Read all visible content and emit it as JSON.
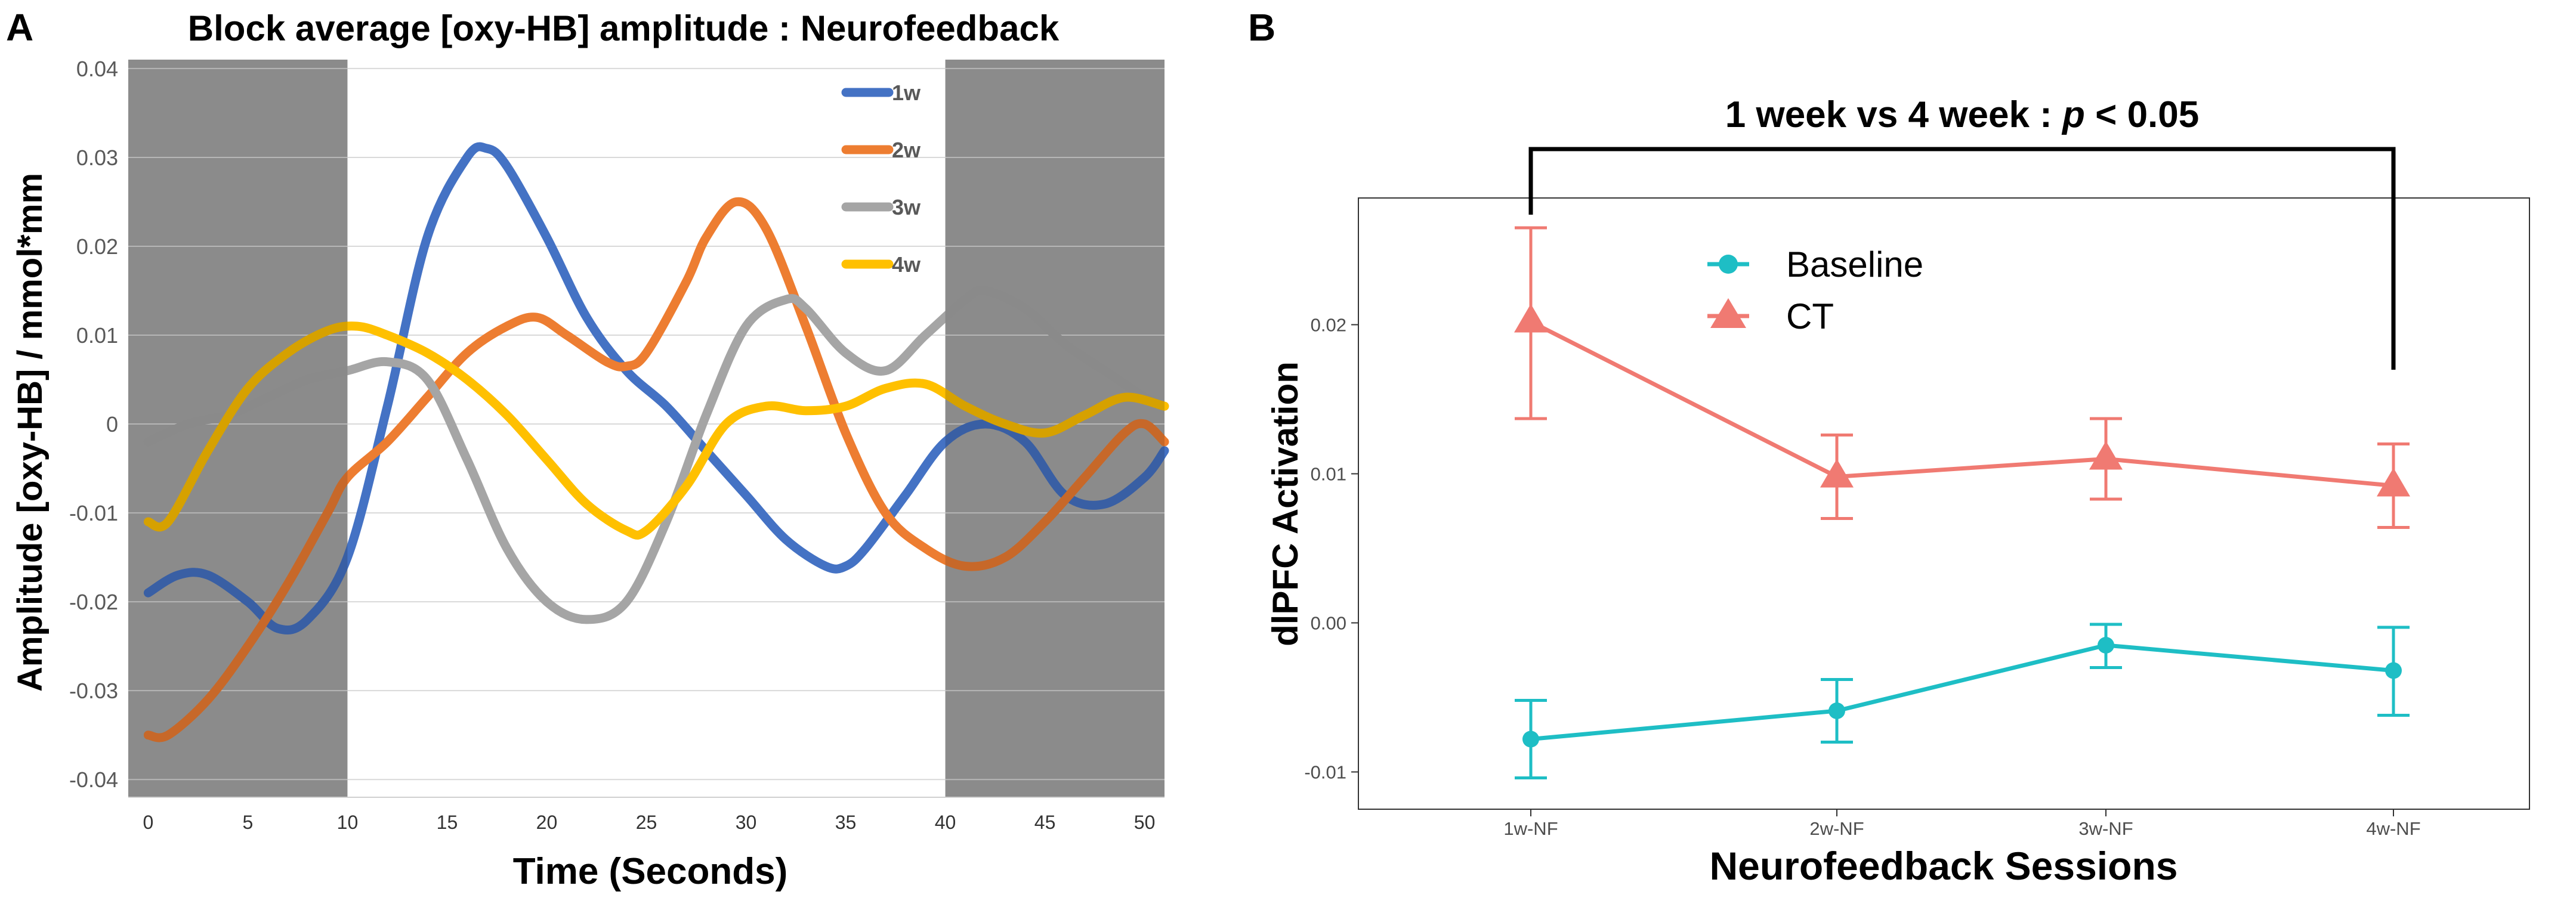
{
  "panel_labels": {
    "a": "A",
    "b": "B"
  },
  "chart_data": [
    {
      "type": "line",
      "panel": "A",
      "title": "Block average [oxy-HB] amplitude : Neurofeedback",
      "xlabel": "Time (Seconds)",
      "ylabel": "Amplitude [oxy-HB] / mmol*mm",
      "xlim": [
        -1,
        51
      ],
      "ylim": [
        -0.042,
        0.041
      ],
      "xticks": [
        0,
        5,
        10,
        15,
        20,
        25,
        30,
        35,
        40,
        45,
        50
      ],
      "xtick_labels": [
        "0",
        "5",
        "10",
        "15",
        "20",
        "25",
        "30",
        "35",
        "40",
        "45",
        "50"
      ],
      "yticks": [
        0.04,
        0.03,
        0.02,
        0.01,
        0,
        -0.01,
        -0.02,
        -0.03,
        -0.04
      ],
      "ytick_labels": [
        "0.04",
        "0.03",
        "0.02",
        "0.01",
        "0",
        "-0.01",
        "-0.02",
        "-0.03",
        "-0.04"
      ],
      "shaded_regions": [
        [
          -1,
          10
        ],
        [
          40,
          51
        ]
      ],
      "shade_color": "#a6a6a6",
      "legend_position": "top-right",
      "series": [
        {
          "name": "1w",
          "color": "#4472c4",
          "x": [
            0,
            1.5,
            3,
            5,
            6.5,
            8,
            10,
            12,
            14,
            16,
            17,
            18,
            20,
            22,
            24,
            26,
            28,
            30,
            32,
            34,
            35,
            36,
            38,
            40,
            42,
            44,
            46,
            48,
            50,
            51
          ],
          "y": [
            -0.019,
            -0.017,
            -0.017,
            -0.02,
            -0.023,
            -0.022,
            -0.015,
            0.002,
            0.021,
            0.03,
            0.031,
            0.029,
            0.021,
            0.012,
            0.006,
            0.002,
            -0.003,
            -0.008,
            -0.013,
            -0.016,
            -0.016,
            -0.014,
            -0.008,
            -0.002,
            0.0,
            -0.002,
            -0.008,
            -0.009,
            -0.006,
            -0.003
          ]
        },
        {
          "name": "2w",
          "color": "#ed7d31",
          "x": [
            0,
            1,
            3,
            5,
            7,
            9,
            10,
            12,
            14,
            16,
            18,
            19.5,
            21,
            23,
            24,
            25,
            27,
            28,
            29.5,
            31,
            33,
            35,
            37,
            39,
            41,
            43,
            45,
            47,
            49,
            50,
            51
          ],
          "y": [
            -0.035,
            -0.035,
            -0.031,
            -0.025,
            -0.018,
            -0.01,
            -0.006,
            -0.002,
            0.003,
            0.008,
            0.011,
            0.012,
            0.01,
            0.007,
            0.0065,
            0.008,
            0.016,
            0.021,
            0.025,
            0.022,
            0.011,
            -0.001,
            -0.01,
            -0.014,
            -0.016,
            -0.015,
            -0.011,
            -0.006,
            -0.001,
            0.0,
            -0.002
          ]
        },
        {
          "name": "3w",
          "color": "#a5a5a5",
          "x": [
            0,
            2,
            4,
            6,
            8,
            10,
            12,
            14,
            16,
            18,
            20,
            22,
            24,
            26,
            28,
            30,
            32,
            33,
            35,
            37,
            39,
            41,
            42,
            44,
            46,
            48,
            50,
            51
          ],
          "y": [
            -0.002,
            0.0,
            0.001,
            0.003,
            0.005,
            0.006,
            0.007,
            0.005,
            -0.004,
            -0.014,
            -0.02,
            -0.022,
            -0.02,
            -0.011,
            0.001,
            0.011,
            0.014,
            0.013,
            0.008,
            0.006,
            0.01,
            0.014,
            0.015,
            0.013,
            0.009,
            0.006,
            0.003,
            0.002
          ]
        },
        {
          "name": "4w",
          "color": "#ffc000",
          "x": [
            0,
            1,
            3,
            5,
            7,
            9,
            10.5,
            12,
            14,
            16,
            18,
            20,
            22,
            24,
            25,
            27,
            29,
            31,
            33,
            35,
            37,
            39,
            41,
            43,
            45,
            47,
            49,
            51
          ],
          "y": [
            -0.011,
            -0.011,
            -0.003,
            0.004,
            0.008,
            0.0105,
            0.011,
            0.01,
            0.008,
            0.005,
            0.001,
            -0.004,
            -0.009,
            -0.012,
            -0.012,
            -0.007,
            0.0,
            0.002,
            0.0015,
            0.002,
            0.004,
            0.0045,
            0.002,
            0.0,
            -0.001,
            0.001,
            0.003,
            0.002
          ]
        }
      ]
    },
    {
      "type": "line",
      "panel": "B",
      "title": "",
      "xlabel": "Neurofeedback Sessions",
      "ylabel": "dlPFC Activation",
      "categories": [
        "1w-NF",
        "2w-NF",
        "3w-NF",
        "4w-NF"
      ],
      "ylim": [
        -0.0125,
        0.0285
      ],
      "yticks": [
        0.02,
        0.01,
        0.0,
        -0.01
      ],
      "ytick_labels": [
        "0.02",
        "0.01",
        "0.00",
        "-0.01"
      ],
      "legend_position": "top-left",
      "series": [
        {
          "name": "Baseline",
          "color": "#1ebec5",
          "marker": "circle",
          "values": [
            -0.0078,
            -0.0059,
            -0.0015,
            -0.0032
          ],
          "error_low": [
            -0.0104,
            -0.008,
            -0.003,
            -0.0062
          ],
          "error_high": [
            -0.0052,
            -0.0038,
            -0.0001,
            -0.0003
          ]
        },
        {
          "name": "CT",
          "color": "#f07a72",
          "marker": "triangle",
          "values": [
            0.0202,
            0.0098,
            0.011,
            0.0092
          ],
          "error_low": [
            0.0137,
            0.007,
            0.0083,
            0.0064
          ],
          "error_high": [
            0.0265,
            0.0126,
            0.0137,
            0.012
          ]
        }
      ],
      "annotation": {
        "prefix": "1 week vs 4 week : ",
        "p": "p",
        "suffix": " < 0.05",
        "from": "1w-NF",
        "to": "4w-NF"
      }
    }
  ]
}
